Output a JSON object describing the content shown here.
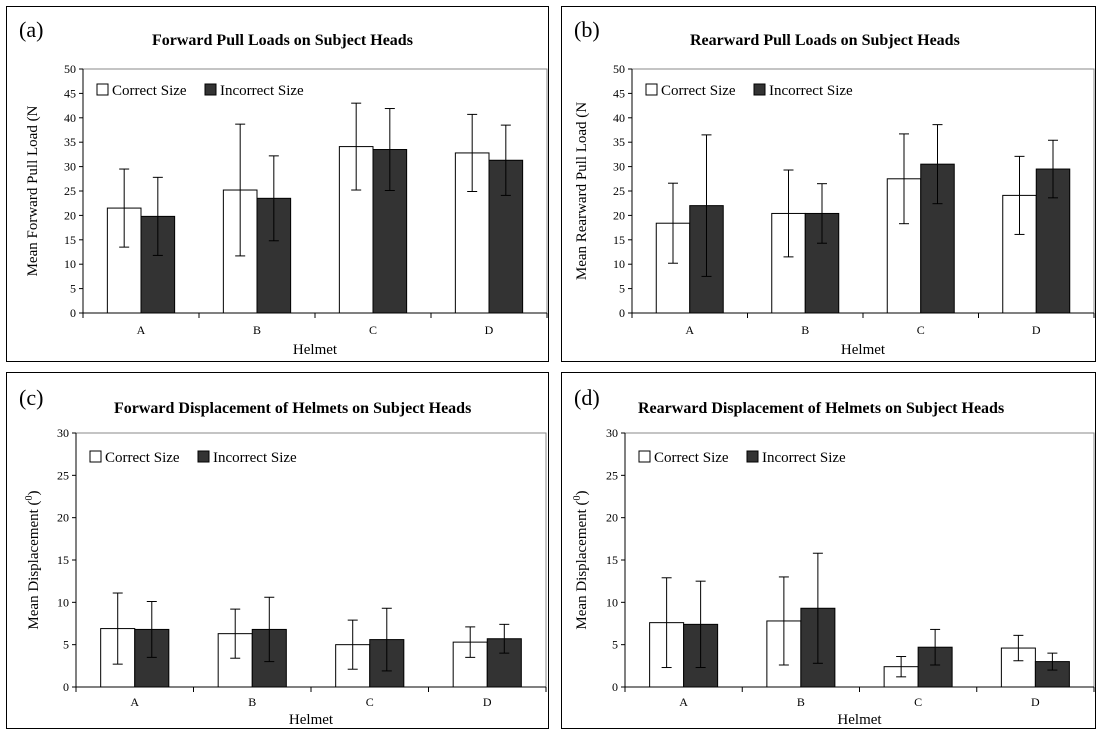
{
  "chart_data": [
    {
      "type": "bar",
      "panel_letter": "(a)",
      "title": "Forward Pull Loads on Subject Heads",
      "xlabel": "Helmet",
      "ylabel": "Mean Forward Pull Load (N",
      "ylim": [
        0,
        50
      ],
      "yticks": [
        0,
        5,
        10,
        15,
        20,
        25,
        30,
        35,
        40,
        45,
        50
      ],
      "categories": [
        "A",
        "B",
        "C",
        "D"
      ],
      "legend_position": "top-left",
      "series": [
        {
          "name": "Correct Size",
          "color": "#ffffff",
          "values": [
            21.5,
            25.2,
            34.1,
            32.8
          ],
          "errors": [
            8.0,
            13.5,
            8.9,
            7.9
          ]
        },
        {
          "name": "Incorrect Size",
          "color": "#333333",
          "values": [
            19.8,
            23.5,
            33.5,
            31.3
          ],
          "errors": [
            8.0,
            8.7,
            8.4,
            7.2
          ]
        }
      ]
    },
    {
      "type": "bar",
      "panel_letter": "(b)",
      "title": "Rearward Pull Loads on Subject Heads",
      "xlabel": "Helmet",
      "ylabel": "Mean Rearward Pull Load (N",
      "ylim": [
        0,
        50
      ],
      "yticks": [
        0,
        5,
        10,
        15,
        20,
        25,
        30,
        35,
        40,
        45,
        50
      ],
      "categories": [
        "A",
        "B",
        "C",
        "D"
      ],
      "legend_position": "top-left",
      "series": [
        {
          "name": "Correct Size",
          "color": "#ffffff",
          "values": [
            18.4,
            20.4,
            27.5,
            24.1
          ],
          "errors": [
            8.2,
            8.9,
            9.2,
            8.0
          ]
        },
        {
          "name": "Incorrect Size",
          "color": "#333333",
          "values": [
            22.0,
            20.4,
            30.5,
            29.5
          ],
          "errors": [
            14.5,
            6.1,
            8.1,
            5.9
          ]
        }
      ]
    },
    {
      "type": "bar",
      "panel_letter": "(c)",
      "title": "Forward Displacement of Helmets on Subject Heads",
      "xlabel": "Helmet",
      "ylabel": "Mean Displacement (",
      "ylabel_superscript": "0",
      "ylabel_suffix": ")",
      "ylim": [
        0,
        30
      ],
      "yticks": [
        0,
        5,
        10,
        15,
        20,
        25,
        30
      ],
      "categories": [
        "A",
        "B",
        "C",
        "D"
      ],
      "legend_position": "top-left",
      "series": [
        {
          "name": "Correct Size",
          "color": "#ffffff",
          "values": [
            6.9,
            6.3,
            5.0,
            5.3
          ],
          "errors": [
            4.2,
            2.9,
            2.9,
            1.8
          ]
        },
        {
          "name": "Incorrect Size",
          "color": "#333333",
          "values": [
            6.8,
            6.8,
            5.6,
            5.7
          ],
          "errors": [
            3.3,
            3.8,
            3.7,
            1.7
          ]
        }
      ]
    },
    {
      "type": "bar",
      "panel_letter": "(d)",
      "title": "Rearward Displacement of Helmets on Subject Heads",
      "xlabel": "Helmet",
      "ylabel": "Mean Displacement (",
      "ylabel_superscript": "0",
      "ylabel_suffix": ")",
      "ylim": [
        0,
        30
      ],
      "yticks": [
        0,
        5,
        10,
        15,
        20,
        25,
        30
      ],
      "categories": [
        "A",
        "B",
        "C",
        "D"
      ],
      "legend_position": "top-left",
      "series": [
        {
          "name": "Correct Size",
          "color": "#ffffff",
          "values": [
            7.6,
            7.8,
            2.4,
            4.6
          ],
          "errors": [
            5.3,
            5.2,
            1.2,
            1.5
          ]
        },
        {
          "name": "Incorrect Size",
          "color": "#333333",
          "values": [
            7.4,
            9.3,
            4.7,
            3.0
          ],
          "errors": [
            5.1,
            6.5,
            2.1,
            1.0
          ]
        }
      ]
    }
  ]
}
